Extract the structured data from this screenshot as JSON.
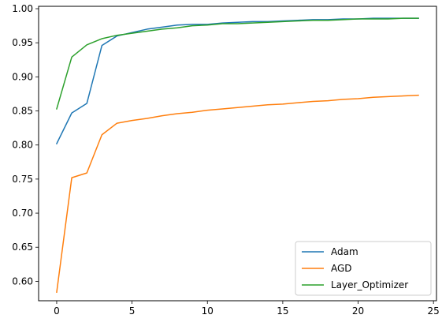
{
  "chart_data": {
    "type": "line",
    "title": "",
    "xlabel": "",
    "ylabel": "",
    "xlim": [
      -1.2,
      25.2
    ],
    "ylim": [
      0.5715,
      1.0035
    ],
    "xticks": [
      0,
      5,
      10,
      15,
      20,
      25
    ],
    "yticks": [
      0.6,
      0.65,
      0.7,
      0.75,
      0.8,
      0.85,
      0.9,
      0.95,
      1.0
    ],
    "xtick_labels": [
      "0",
      "5",
      "10",
      "15",
      "20",
      "25"
    ],
    "ytick_labels": [
      "0.60",
      "0.65",
      "0.70",
      "0.75",
      "0.80",
      "0.85",
      "0.90",
      "0.95",
      "1.00"
    ],
    "grid": false,
    "legend_position": "lower-right",
    "x": [
      0,
      1,
      2,
      3,
      4,
      5,
      6,
      7,
      8,
      9,
      10,
      11,
      12,
      13,
      14,
      15,
      16,
      17,
      18,
      19,
      20,
      21,
      22,
      23,
      24
    ],
    "series": [
      {
        "name": "Adam",
        "color": "#1f77b4",
        "values": [
          0.802,
          0.847,
          0.861,
          0.946,
          0.96,
          0.965,
          0.97,
          0.973,
          0.976,
          0.977,
          0.977,
          0.979,
          0.98,
          0.981,
          0.981,
          0.982,
          0.983,
          0.984,
          0.984,
          0.985,
          0.985,
          0.986,
          0.986,
          0.986,
          0.986
        ]
      },
      {
        "name": "AGD",
        "color": "#ff7f0e",
        "values": [
          0.584,
          0.752,
          0.759,
          0.815,
          0.832,
          0.836,
          0.839,
          0.843,
          0.846,
          0.848,
          0.851,
          0.853,
          0.855,
          0.857,
          0.859,
          0.86,
          0.862,
          0.864,
          0.865,
          0.867,
          0.868,
          0.87,
          0.871,
          0.872,
          0.873
        ]
      },
      {
        "name": "Layer_Optimizer",
        "color": "#2ca02c",
        "values": [
          0.853,
          0.929,
          0.947,
          0.956,
          0.961,
          0.964,
          0.967,
          0.97,
          0.972,
          0.975,
          0.976,
          0.978,
          0.978,
          0.979,
          0.98,
          0.981,
          0.982,
          0.983,
          0.983,
          0.984,
          0.985,
          0.985,
          0.985,
          0.986,
          0.986
        ]
      }
    ]
  }
}
